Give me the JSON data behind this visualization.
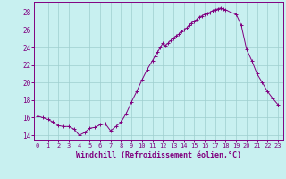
{
  "xlabel": "Windchill (Refroidissement éolien,°C)",
  "background_color": "#c8f0f0",
  "line_color": "#800080",
  "marker_color": "#800080",
  "ylim": [
    13.5,
    29.2
  ],
  "xlim": [
    -0.3,
    23.5
  ],
  "yticks": [
    14,
    16,
    18,
    20,
    22,
    24,
    26,
    28
  ],
  "xticks": [
    0,
    1,
    2,
    3,
    4,
    5,
    6,
    7,
    8,
    9,
    10,
    11,
    12,
    13,
    14,
    15,
    16,
    17,
    18,
    19,
    20,
    21,
    22,
    23
  ],
  "hours": [
    0.0,
    0.5,
    1.0,
    1.5,
    2.0,
    2.5,
    3.0,
    3.5,
    4.0,
    4.5,
    5.0,
    5.5,
    6.0,
    6.5,
    7.0,
    7.5,
    8.0,
    8.5,
    9.0,
    9.5,
    10.0,
    10.5,
    11.0,
    11.25,
    11.5,
    11.75,
    12.0,
    12.25,
    12.5,
    12.75,
    13.0,
    13.25,
    13.5,
    13.75,
    14.0,
    14.25,
    14.5,
    14.75,
    15.0,
    15.25,
    15.5,
    15.75,
    16.0,
    16.25,
    16.5,
    16.75,
    17.0,
    17.25,
    17.5,
    17.75,
    18.0,
    18.5,
    19.0,
    19.5,
    20.0,
    20.5,
    21.0,
    21.5,
    22.0,
    22.5,
    23.0
  ],
  "values": [
    16.2,
    16.0,
    15.8,
    15.5,
    15.1,
    15.0,
    15.0,
    14.7,
    14.0,
    14.3,
    14.8,
    14.9,
    15.2,
    15.3,
    14.5,
    15.0,
    15.5,
    16.5,
    17.8,
    19.0,
    20.3,
    21.5,
    22.5,
    23.0,
    23.5,
    24.0,
    24.5,
    24.2,
    24.5,
    24.8,
    25.0,
    25.3,
    25.5,
    25.8,
    26.0,
    26.2,
    26.5,
    26.8,
    27.0,
    27.2,
    27.5,
    27.6,
    27.8,
    27.9,
    28.0,
    28.2,
    28.3,
    28.4,
    28.5,
    28.4,
    28.3,
    28.0,
    27.8,
    26.5,
    23.8,
    22.5,
    21.0,
    20.0,
    19.0,
    18.2,
    17.5
  ]
}
